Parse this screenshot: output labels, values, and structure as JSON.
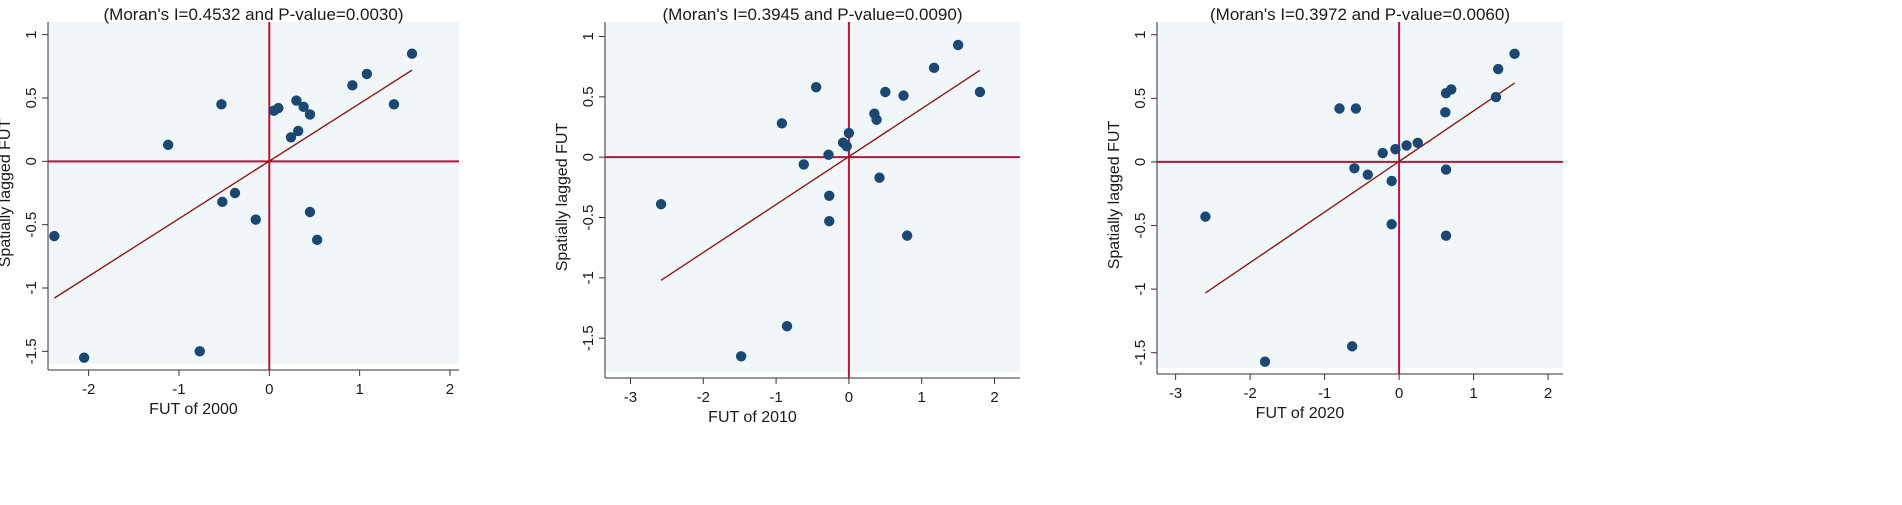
{
  "colors": {
    "background": "#ffffff",
    "plot_background": "#f1f6f9",
    "axis_line": "#333333",
    "point_fill": "#1a4872",
    "fit_line": "#8b1a1a",
    "quadrant_line": "#b0173d"
  },
  "chart_data": [
    {
      "type": "scatter",
      "title": "(Moran's I=0.4532 and P-value=0.0030)",
      "xlabel": "FUT of 2000",
      "ylabel": "Spatially lagged FUT",
      "xlim": [
        -2.45,
        2.1
      ],
      "ylim": [
        -1.6,
        1.1
      ],
      "xticks": [
        -2,
        -1,
        0,
        1,
        2
      ],
      "yticks": [
        -1.5,
        -1,
        -0.5,
        0,
        0.5,
        1
      ],
      "ytick_labels": [
        "-1.5",
        "-1",
        "-0.5",
        "0",
        "0.5",
        "1"
      ],
      "grid": false,
      "fit_line": {
        "x": [
          -2.38,
          1.58
        ],
        "y": [
          -1.08,
          0.72
        ]
      },
      "points": [
        {
          "x": -2.38,
          "y": -0.59
        },
        {
          "x": -2.05,
          "y": -1.55
        },
        {
          "x": -1.12,
          "y": 0.13
        },
        {
          "x": -0.77,
          "y": -1.5
        },
        {
          "x": -0.53,
          "y": 0.45
        },
        {
          "x": -0.52,
          "y": -0.32
        },
        {
          "x": -0.38,
          "y": -0.25
        },
        {
          "x": -0.15,
          "y": -0.46
        },
        {
          "x": 0.05,
          "y": 0.4
        },
        {
          "x": 0.1,
          "y": 0.42
        },
        {
          "x": 0.24,
          "y": 0.19
        },
        {
          "x": 0.3,
          "y": 0.48
        },
        {
          "x": 0.32,
          "y": 0.24
        },
        {
          "x": 0.38,
          "y": 0.43
        },
        {
          "x": 0.45,
          "y": 0.37
        },
        {
          "x": 0.45,
          "y": -0.4
        },
        {
          "x": 0.53,
          "y": -0.62
        },
        {
          "x": 0.92,
          "y": 0.6
        },
        {
          "x": 1.08,
          "y": 0.69
        },
        {
          "x": 1.38,
          "y": 0.45
        },
        {
          "x": 1.58,
          "y": 0.85
        }
      ]
    },
    {
      "type": "scatter",
      "title": "(Moran's I=0.3945 and P-value=0.0090)",
      "xlabel": "FUT of 2010",
      "ylabel": "Spatially lagged FUT",
      "xlim": [
        -3.35,
        2.35
      ],
      "ylim": [
        -1.78,
        1.12
      ],
      "xticks": [
        -3,
        -2,
        -1,
        0,
        1,
        2
      ],
      "yticks": [
        -1.5,
        -1,
        -0.5,
        0,
        0.5,
        1
      ],
      "ytick_labels": [
        "-1.5",
        "-1",
        "-0.5",
        "0",
        "0.5",
        "1"
      ],
      "grid": false,
      "fit_line": {
        "x": [
          -2.58,
          1.8
        ],
        "y": [
          -1.02,
          0.72
        ]
      },
      "points": [
        {
          "x": -2.58,
          "y": -0.39
        },
        {
          "x": -1.48,
          "y": -1.65
        },
        {
          "x": -0.92,
          "y": 0.28
        },
        {
          "x": -0.85,
          "y": -1.4
        },
        {
          "x": -0.62,
          "y": -0.06
        },
        {
          "x": -0.45,
          "y": 0.58
        },
        {
          "x": -0.28,
          "y": 0.02
        },
        {
          "x": -0.27,
          "y": -0.32
        },
        {
          "x": -0.27,
          "y": -0.53
        },
        {
          "x": -0.08,
          "y": 0.12
        },
        {
          "x": -0.03,
          "y": 0.09
        },
        {
          "x": 0.0,
          "y": 0.2
        },
        {
          "x": 0.35,
          "y": 0.36
        },
        {
          "x": 0.38,
          "y": 0.31
        },
        {
          "x": 0.42,
          "y": -0.17
        },
        {
          "x": 0.5,
          "y": 0.54
        },
        {
          "x": 0.75,
          "y": 0.51
        },
        {
          "x": 0.8,
          "y": -0.65
        },
        {
          "x": 1.17,
          "y": 0.74
        },
        {
          "x": 1.5,
          "y": 0.93
        },
        {
          "x": 1.8,
          "y": 0.54
        }
      ]
    },
    {
      "type": "scatter",
      "title": "(Moran's I=0.3972 and P-value=0.0060)",
      "xlabel": "FUT of 2020",
      "ylabel": "Spatially lagged FUT",
      "xlim": [
        -3.25,
        2.2
      ],
      "ylim": [
        -1.62,
        1.1
      ],
      "xticks": [
        -3,
        -2,
        -1,
        0,
        1,
        2
      ],
      "yticks": [
        -1.5,
        -1,
        -0.5,
        0,
        0.5,
        1
      ],
      "ytick_labels": [
        "-1.5",
        "-1",
        "-0.5",
        "0",
        "0.5",
        "1"
      ],
      "grid": false,
      "fit_line": {
        "x": [
          -2.6,
          1.55
        ],
        "y": [
          -1.03,
          0.62
        ]
      },
      "points": [
        {
          "x": -2.6,
          "y": -0.43
        },
        {
          "x": -1.8,
          "y": -1.57
        },
        {
          "x": -0.8,
          "y": 0.42
        },
        {
          "x": -0.6,
          "y": -0.05
        },
        {
          "x": -0.58,
          "y": 0.42
        },
        {
          "x": -0.63,
          "y": -1.45
        },
        {
          "x": -0.42,
          "y": -0.1
        },
        {
          "x": -0.22,
          "y": 0.07
        },
        {
          "x": -0.1,
          "y": -0.15
        },
        {
          "x": -0.1,
          "y": -0.49
        },
        {
          "x": -0.05,
          "y": 0.1
        },
        {
          "x": 0.1,
          "y": 0.13
        },
        {
          "x": 0.25,
          "y": 0.15
        },
        {
          "x": 0.62,
          "y": 0.39
        },
        {
          "x": 0.63,
          "y": 0.54
        },
        {
          "x": 0.63,
          "y": -0.06
        },
        {
          "x": 0.63,
          "y": -0.58
        },
        {
          "x": 0.7,
          "y": 0.57
        },
        {
          "x": 1.3,
          "y": 0.51
        },
        {
          "x": 1.33,
          "y": 0.73
        },
        {
          "x": 1.55,
          "y": 0.85
        }
      ]
    }
  ]
}
